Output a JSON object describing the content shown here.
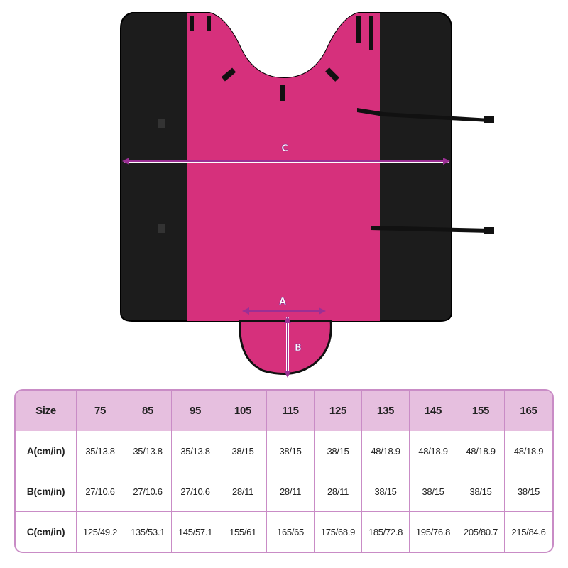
{
  "product": {
    "colors": {
      "body": "#d6307c",
      "side_panels": "#1c1c1c",
      "measure_arrow": "#9b2f94"
    },
    "measure_labels": {
      "a": "A",
      "b": "B",
      "c": "C"
    }
  },
  "size_table": {
    "header": [
      "Size",
      "75",
      "85",
      "95",
      "105",
      "115",
      "125",
      "135",
      "145",
      "155",
      "165"
    ],
    "rows": [
      {
        "label": "A(cm/in)",
        "values": [
          "35/13.8",
          "35/13.8",
          "35/13.8",
          "38/15",
          "38/15",
          "38/15",
          "48/18.9",
          "48/18.9",
          "48/18.9",
          "48/18.9"
        ]
      },
      {
        "label": "B(cm/in)",
        "values": [
          "27/10.6",
          "27/10.6",
          "27/10.6",
          "28/11",
          "28/11",
          "28/11",
          "38/15",
          "38/15",
          "38/15",
          "38/15"
        ]
      },
      {
        "label": "C(cm/in)",
        "values": [
          "125/49.2",
          "135/53.1",
          "145/57.1",
          "155/61",
          "165/65",
          "175/68.9",
          "185/72.8",
          "195/76.8",
          "205/80.7",
          "215/84.6"
        ]
      }
    ],
    "header_color": "#e6bfdf",
    "border_color": "#c98cc6"
  }
}
